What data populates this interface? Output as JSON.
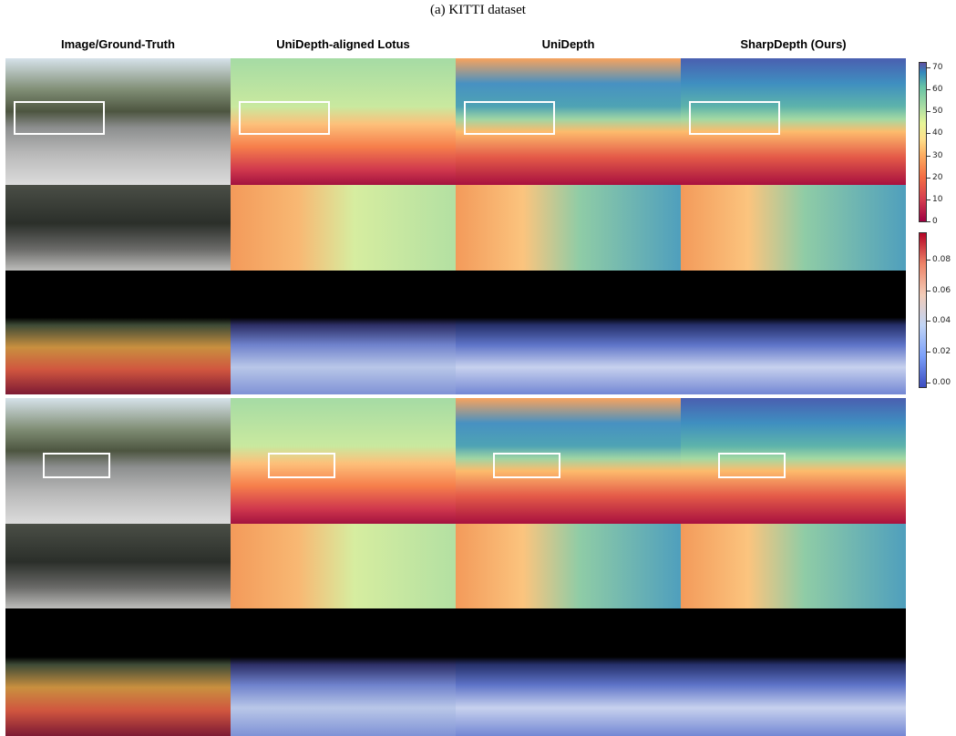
{
  "caption": "(a) KITTI dataset",
  "columns": [
    "Image/Ground-Truth",
    "UniDepth-aligned Lotus",
    "UniDepth",
    "SharpDepth (Ours)"
  ],
  "depth_colorbar": {
    "lim": [
      0,
      72
    ],
    "ticks": [
      0,
      10,
      20,
      30,
      40,
      50,
      60,
      70
    ]
  },
  "error_colorbar": {
    "lim": [
      -0.003,
      0.097
    ],
    "ticks": [
      {
        "value": 0,
        "label": "0.00"
      },
      {
        "value": 0.02,
        "label": "0.02"
      },
      {
        "value": 0.04,
        "label": "0.04"
      },
      {
        "value": 0.06,
        "label": "0.06"
      },
      {
        "value": 0.08,
        "label": "0.08"
      }
    ]
  }
}
